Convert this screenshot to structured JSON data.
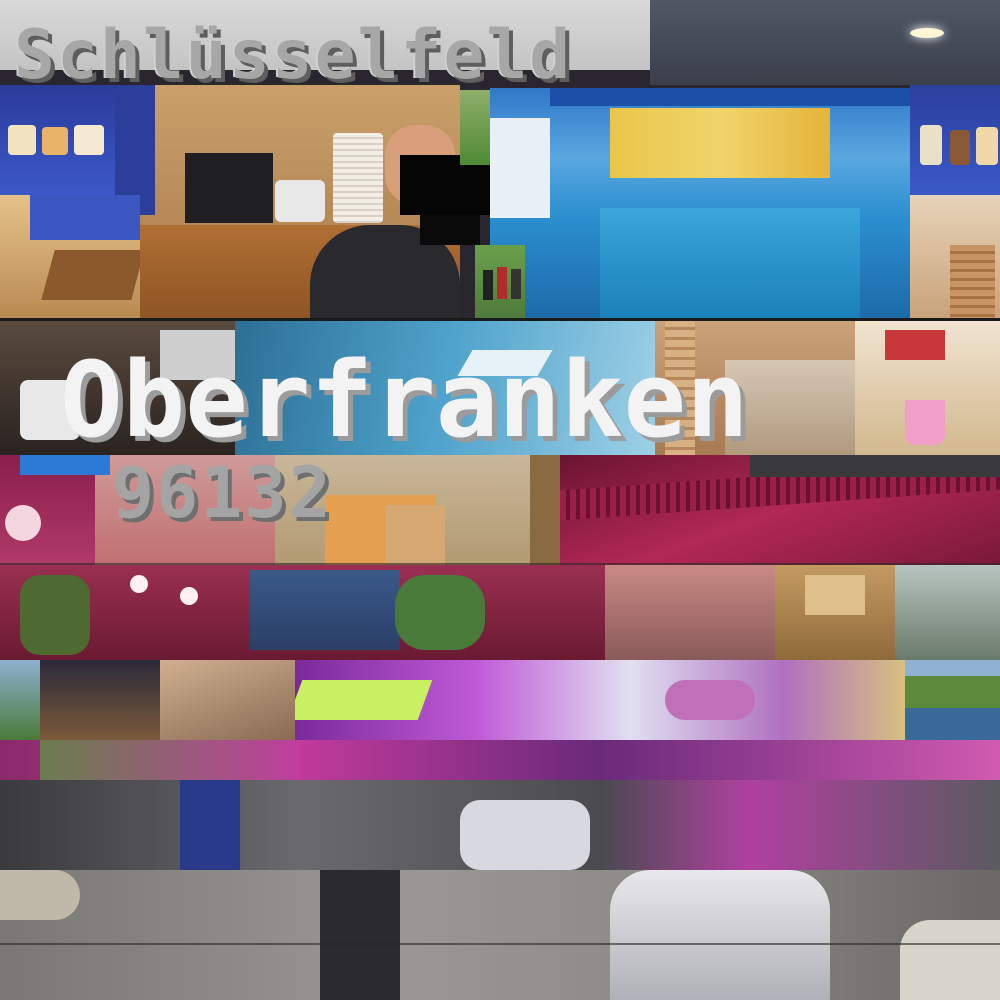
{
  "texts": {
    "line1": "Schlüsselfeld",
    "line2": "Oberfranken",
    "line3": "96132"
  },
  "palette": {
    "pool_blue": "#3aa0d8",
    "magenta": "#b0287a",
    "sand": "#c7a36a",
    "wood": "#a5652c",
    "floor_grey": "#8c8a86"
  }
}
